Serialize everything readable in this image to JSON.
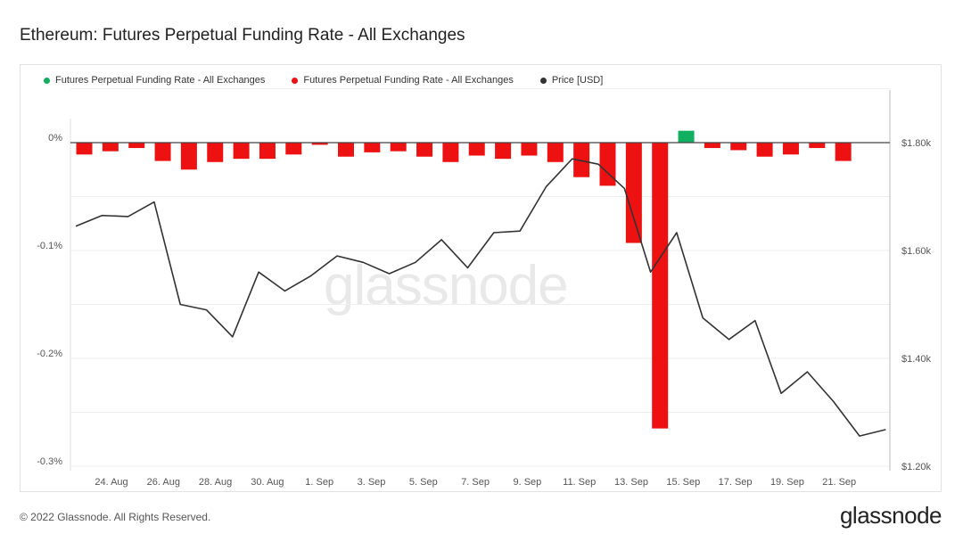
{
  "page": {
    "title": "Ethereum: Futures Perpetual Funding Rate - All Exchanges",
    "footer": "© 2022 Glassnode. All Rights Reserved.",
    "logo": "glassnode",
    "watermark": "glassnode"
  },
  "colors": {
    "positive": "#10b060",
    "negative": "#ee1111",
    "price": "#333333"
  },
  "chart_data": {
    "type": "bar",
    "legend": [
      {
        "label": "Futures Perpetual Funding Rate - All Exchanges",
        "color": "#10b060"
      },
      {
        "label": "Futures Perpetual Funding Rate - All Exchanges",
        "color": "#ee1111"
      },
      {
        "label": "Price [USD]",
        "color": "#333333"
      }
    ],
    "legend_position": "top-left",
    "x_ticks": [
      "24. Aug",
      "26. Aug",
      "28. Aug",
      "30. Aug",
      "1. Sep",
      "3. Sep",
      "5. Sep",
      "7. Sep",
      "9. Sep",
      "11. Sep",
      "13. Sep",
      "15. Sep",
      "17. Sep",
      "19. Sep",
      "21. Sep"
    ],
    "y_left": {
      "range": [
        -0.3,
        0.0
      ],
      "ticks": [
        {
          "value": 0.0,
          "label": "0%"
        },
        {
          "value": -0.1,
          "label": "-0.1%"
        },
        {
          "value": -0.2,
          "label": "-0.2%"
        },
        {
          "value": -0.3,
          "label": "-0.3%"
        }
      ]
    },
    "y_right": {
      "range": [
        1200,
        1800
      ],
      "ticks": [
        {
          "value": 1800,
          "label": "$1.80k"
        },
        {
          "value": 1600,
          "label": "$1.60k"
        },
        {
          "value": 1400,
          "label": "$1.40k"
        },
        {
          "value": 1200,
          "label": "$1.20k"
        }
      ]
    },
    "funding_rate": [
      -0.011,
      -0.008,
      -0.005,
      -0.017,
      -0.025,
      -0.018,
      -0.015,
      -0.015,
      -0.011,
      -0.002,
      -0.013,
      -0.009,
      -0.008,
      -0.013,
      -0.018,
      -0.012,
      -0.015,
      -0.012,
      -0.018,
      -0.032,
      -0.04,
      -0.093,
      -0.265,
      0.011,
      -0.005,
      -0.007,
      -0.013,
      -0.011,
      -0.005,
      -0.017
    ],
    "price": [
      1645,
      1665,
      1663,
      1690,
      1500,
      1490,
      1440,
      1560,
      1525,
      1553,
      1590,
      1578,
      1557,
      1578,
      1620,
      1568,
      1633,
      1636,
      1718,
      1770,
      1760,
      1715,
      1560,
      1633,
      1475,
      1435,
      1470,
      1335,
      1375,
      1320,
      1256,
      1268
    ],
    "grid": true
  }
}
